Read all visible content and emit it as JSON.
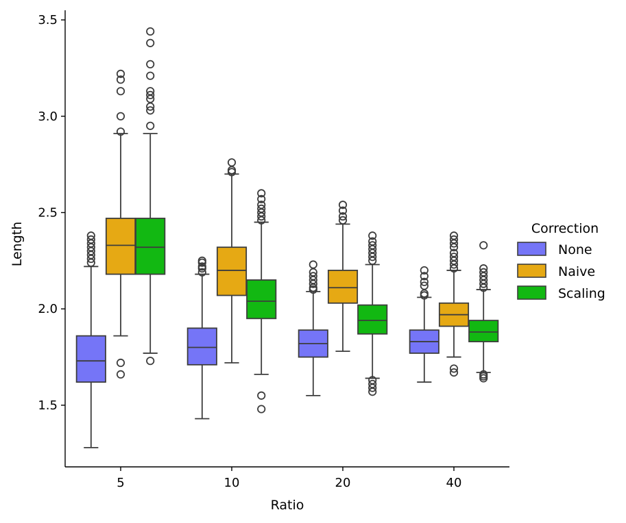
{
  "chart_data": {
    "type": "boxplot",
    "xlabel": "Ratio",
    "ylabel": "Length",
    "ylim": [
      1.18,
      3.55
    ],
    "yticks": [
      1.5,
      2.0,
      2.5,
      3.0,
      3.5
    ],
    "ytick_labels": [
      "1.5",
      "2.0",
      "2.5",
      "3.0",
      "3.5"
    ],
    "categories": [
      "5",
      "10",
      "20",
      "40"
    ],
    "legend": {
      "title": "Correction",
      "position": "right",
      "entries": [
        "None",
        "Naive",
        "Scaling"
      ]
    },
    "series": [
      {
        "name": "None",
        "color": "#7575f7",
        "boxes": [
          {
            "whislo": 1.28,
            "q1": 1.62,
            "med": 1.73,
            "q3": 1.86,
            "whishi": 2.22,
            "fliers": [
              2.24,
              2.26,
              2.28,
              2.3,
              2.32,
              2.34,
              2.36,
              2.38
            ]
          },
          {
            "whislo": 1.43,
            "q1": 1.71,
            "med": 1.8,
            "q3": 1.9,
            "whishi": 2.18,
            "fliers": [
              2.19,
              2.21,
              2.22,
              2.24,
              2.25
            ]
          },
          {
            "whislo": 1.55,
            "q1": 1.75,
            "med": 1.82,
            "q3": 1.89,
            "whishi": 2.09,
            "fliers": [
              2.1,
              2.11,
              2.13,
              2.15,
              2.17,
              2.19,
              2.23
            ]
          },
          {
            "whislo": 1.62,
            "q1": 1.77,
            "med": 1.83,
            "q3": 1.89,
            "whishi": 2.06,
            "fliers": [
              2.07,
              2.08,
              2.12,
              2.14,
              2.17,
              2.2
            ]
          }
        ]
      },
      {
        "name": "Naive",
        "color": "#e6a914",
        "boxes": [
          {
            "whislo": 1.86,
            "q1": 2.18,
            "med": 2.33,
            "q3": 2.47,
            "whishi": 2.91,
            "fliers": [
              1.66,
              1.72,
              2.92,
              3.0,
              3.13,
              3.19,
              3.22
            ]
          },
          {
            "whislo": 1.72,
            "q1": 2.07,
            "med": 2.2,
            "q3": 2.32,
            "whishi": 2.7,
            "fliers": [
              2.71,
              2.72,
              2.76
            ]
          },
          {
            "whislo": 1.78,
            "q1": 2.03,
            "med": 2.11,
            "q3": 2.2,
            "whishi": 2.44,
            "fliers": [
              2.46,
              2.48,
              2.51,
              2.54
            ]
          },
          {
            "whislo": 1.75,
            "q1": 1.91,
            "med": 1.97,
            "q3": 2.03,
            "whishi": 2.2,
            "fliers": [
              1.67,
              1.69,
              2.21,
              2.23,
              2.25,
              2.27,
              2.29,
              2.32,
              2.34,
              2.36,
              2.38
            ]
          }
        ]
      },
      {
        "name": "Scaling",
        "color": "#12b812",
        "boxes": [
          {
            "whislo": 1.77,
            "q1": 2.18,
            "med": 2.32,
            "q3": 2.47,
            "whishi": 2.91,
            "fliers": [
              1.73,
              2.95,
              3.03,
              3.05,
              3.09,
              3.11,
              3.13,
              3.21,
              3.27,
              3.38,
              3.44
            ]
          },
          {
            "whislo": 1.66,
            "q1": 1.95,
            "med": 2.04,
            "q3": 2.15,
            "whishi": 2.45,
            "fliers": [
              1.48,
              1.55,
              2.46,
              2.48,
              2.5,
              2.52,
              2.54,
              2.57,
              2.6
            ]
          },
          {
            "whislo": 1.64,
            "q1": 1.87,
            "med": 1.94,
            "q3": 2.02,
            "whishi": 2.23,
            "fliers": [
              1.57,
              1.59,
              1.61,
              1.63,
              2.25,
              2.27,
              2.29,
              2.31,
              2.33,
              2.35,
              2.38
            ]
          },
          {
            "whislo": 1.67,
            "q1": 1.83,
            "med": 1.88,
            "q3": 1.94,
            "whishi": 2.1,
            "fliers": [
              1.64,
              1.65,
              1.66,
              2.11,
              2.13,
              2.15,
              2.17,
              2.19,
              2.21,
              2.33
            ]
          }
        ]
      }
    ]
  }
}
